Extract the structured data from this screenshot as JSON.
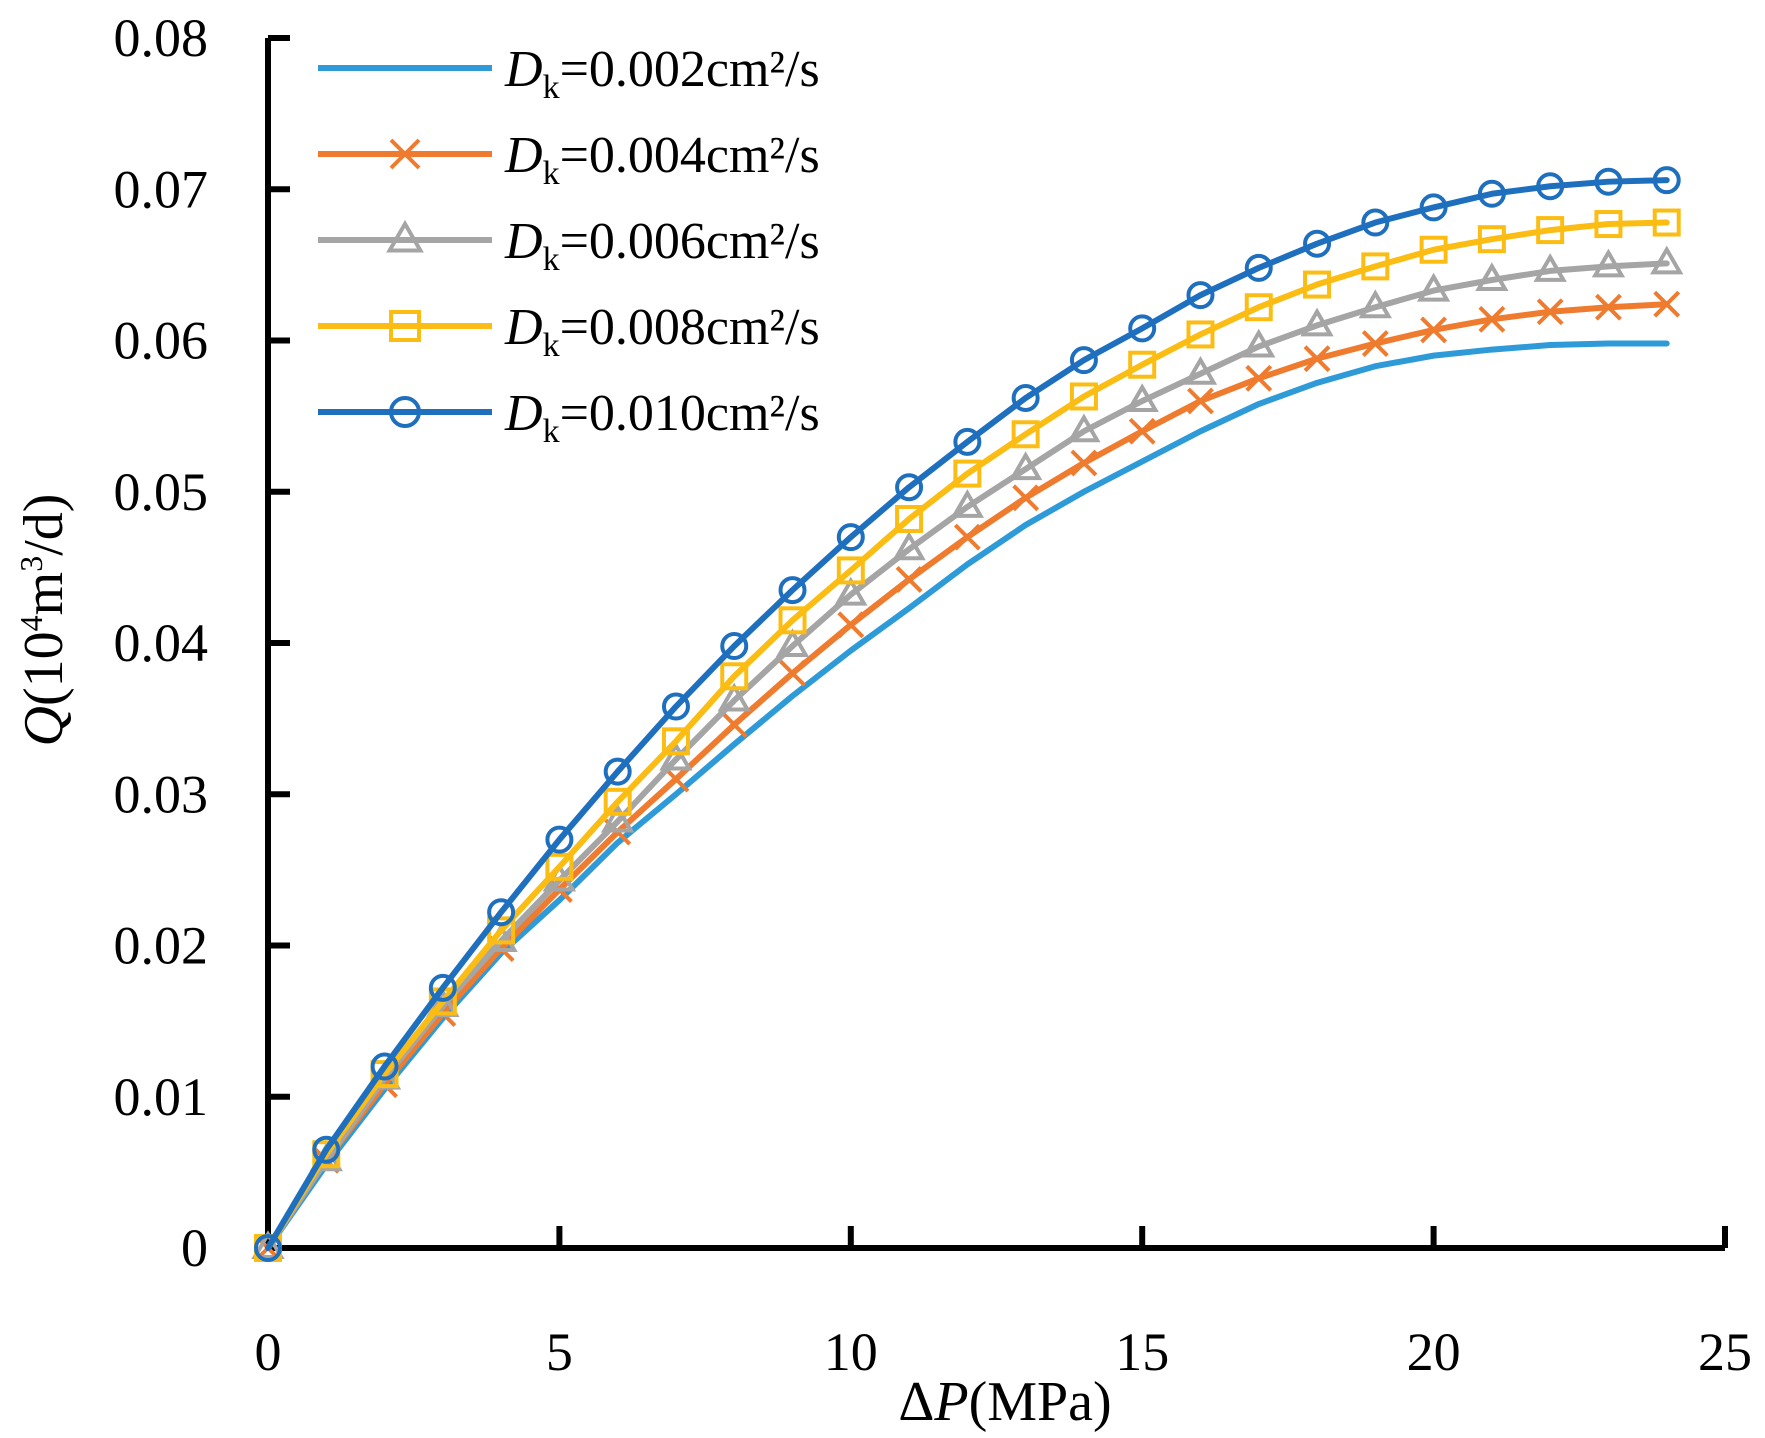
{
  "chart_data": {
    "type": "line",
    "title": "",
    "xlabel": {
      "prefix": "Δ",
      "var": "P",
      "unit": "(MPa)"
    },
    "ylabel": {
      "var": "Q",
      "open": "(10",
      "exp": "4",
      "mid": "m",
      "exp2": "3",
      "close": "/d)"
    },
    "xlim": [
      0,
      25
    ],
    "ylim": [
      0,
      0.08
    ],
    "x_ticks": [
      0,
      5,
      10,
      15,
      20,
      25
    ],
    "x_tick_labels": [
      "0",
      "5",
      "10",
      "15",
      "20",
      "25"
    ],
    "y_ticks": [
      0,
      0.01,
      0.02,
      0.03,
      0.04,
      0.05,
      0.06,
      0.07,
      0.08
    ],
    "y_tick_labels": [
      "0",
      "0.01",
      "0.02",
      "0.03",
      "0.04",
      "0.05",
      "0.06",
      "0.07",
      "0.08"
    ],
    "legend_position": "top-left",
    "x": [
      0,
      1,
      2,
      3,
      4,
      5,
      6,
      7,
      8,
      9,
      10,
      11,
      12,
      13,
      14,
      15,
      16,
      17,
      18,
      19,
      20,
      21,
      22,
      23,
      24
    ],
    "series": [
      {
        "name": "Dk=0.002cm²/s",
        "legend_var": "D",
        "legend_sub": "k",
        "legend_rest": "=0.002cm²/s",
        "color": "#2e9bd8",
        "marker": "none",
        "values": [
          0,
          0.0055,
          0.0105,
          0.0152,
          0.0195,
          0.023,
          0.0268,
          0.03,
          0.0333,
          0.0365,
          0.0395,
          0.0423,
          0.0452,
          0.0478,
          0.05,
          0.052,
          0.054,
          0.0558,
          0.0572,
          0.0583,
          0.059,
          0.0594,
          0.0597,
          0.0598,
          0.0598
        ]
      },
      {
        "name": "Dk=0.004cm²/s",
        "legend_var": "D",
        "legend_sub": "k",
        "legend_rest": "=0.004cm²/s",
        "color": "#ef7b2f",
        "marker": "x",
        "values": [
          0,
          0.0058,
          0.0108,
          0.0155,
          0.0198,
          0.0237,
          0.0275,
          0.031,
          0.0346,
          0.038,
          0.0412,
          0.0442,
          0.047,
          0.0496,
          0.0519,
          0.054,
          0.056,
          0.0575,
          0.0588,
          0.0598,
          0.0607,
          0.0614,
          0.0619,
          0.0622,
          0.0624
        ]
      },
      {
        "name": "Dk=0.006cm²/s",
        "legend_var": "D",
        "legend_sub": "k",
        "legend_rest": "=0.006cm²/s",
        "color": "#a5a5a5",
        "marker": "triangle",
        "values": [
          0,
          0.0058,
          0.0112,
          0.016,
          0.0203,
          0.0243,
          0.0282,
          0.0323,
          0.0362,
          0.0398,
          0.0432,
          0.0462,
          0.049,
          0.0515,
          0.054,
          0.056,
          0.0578,
          0.0596,
          0.061,
          0.0622,
          0.0633,
          0.064,
          0.0646,
          0.0649,
          0.0651
        ]
      },
      {
        "name": "Dk=0.008cm²/s",
        "legend_var": "D",
        "legend_sub": "k",
        "legend_rest": "=0.008cm²/s",
        "color": "#fbbd13",
        "marker": "square",
        "values": [
          0,
          0.0062,
          0.0115,
          0.0163,
          0.021,
          0.0252,
          0.0295,
          0.0335,
          0.0378,
          0.0415,
          0.0448,
          0.0482,
          0.0512,
          0.0538,
          0.0563,
          0.0584,
          0.0604,
          0.0622,
          0.0637,
          0.0649,
          0.066,
          0.0667,
          0.0673,
          0.0677,
          0.0678
        ]
      },
      {
        "name": "Dk=0.010cm²/s",
        "legend_var": "D",
        "legend_sub": "k",
        "legend_rest": "=0.010cm²/s",
        "color": "#1f6fbf",
        "marker": "circle",
        "values": [
          0,
          0.0065,
          0.012,
          0.0172,
          0.0222,
          0.027,
          0.0315,
          0.0358,
          0.0398,
          0.0435,
          0.047,
          0.0503,
          0.0533,
          0.0562,
          0.0587,
          0.0608,
          0.063,
          0.0648,
          0.0664,
          0.0678,
          0.0688,
          0.0697,
          0.0702,
          0.0705,
          0.0706
        ]
      }
    ]
  }
}
